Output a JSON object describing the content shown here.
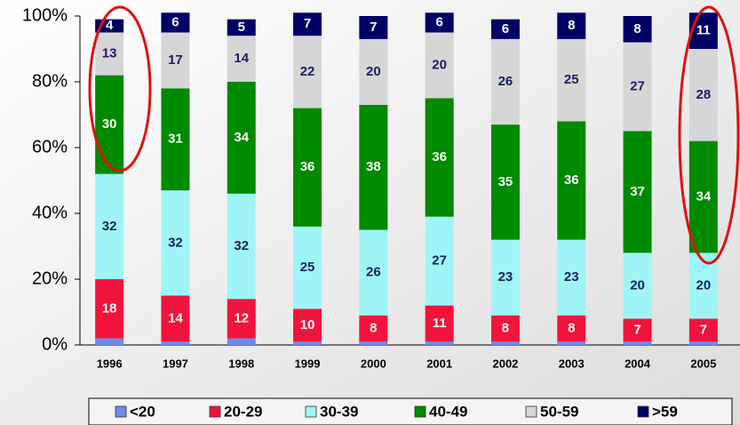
{
  "chart_data": {
    "type": "stacked_bar",
    "categories": [
      "1996",
      "1997",
      "1998",
      "1999",
      "2000",
      "2001",
      "2002",
      "2003",
      "2004",
      "2005"
    ],
    "series": [
      {
        "name": "<20",
        "color": "#6a8cf0",
        "values": [
          2,
          1,
          2,
          1,
          1,
          1,
          1,
          1,
          1,
          1
        ],
        "labeled": false
      },
      {
        "name": "20-29",
        "color": "#f0143c",
        "values": [
          18,
          14,
          12,
          10,
          8,
          11,
          8,
          8,
          7,
          7
        ],
        "labeled": true
      },
      {
        "name": "30-39",
        "color": "#9ff5f5",
        "values": [
          32,
          32,
          32,
          25,
          26,
          27,
          23,
          23,
          20,
          20
        ],
        "labeled": true
      },
      {
        "name": "40-49",
        "color": "#008a00",
        "values": [
          30,
          31,
          34,
          36,
          38,
          36,
          35,
          36,
          37,
          34
        ],
        "labeled": true
      },
      {
        "name": "50-59",
        "color": "#d6d6d6",
        "values": [
          13,
          17,
          14,
          22,
          20,
          20,
          26,
          25,
          27,
          28
        ],
        "labeled": true
      },
      {
        "name": ">59",
        "color": "#000066",
        "values": [
          4,
          6,
          5,
          7,
          7,
          6,
          6,
          8,
          8,
          11
        ],
        "labeled": true
      }
    ],
    "ylim": [
      0,
      100
    ],
    "yticks": [
      {
        "value": 0,
        "label": "0%"
      },
      {
        "value": 20,
        "label": "20%"
      },
      {
        "value": 40,
        "label": "40%"
      },
      {
        "value": 60,
        "label": "60%"
      },
      {
        "value": 80,
        "label": "80%"
      },
      {
        "value": 100,
        "label": "100%"
      }
    ],
    "legend": "bottom"
  }
}
